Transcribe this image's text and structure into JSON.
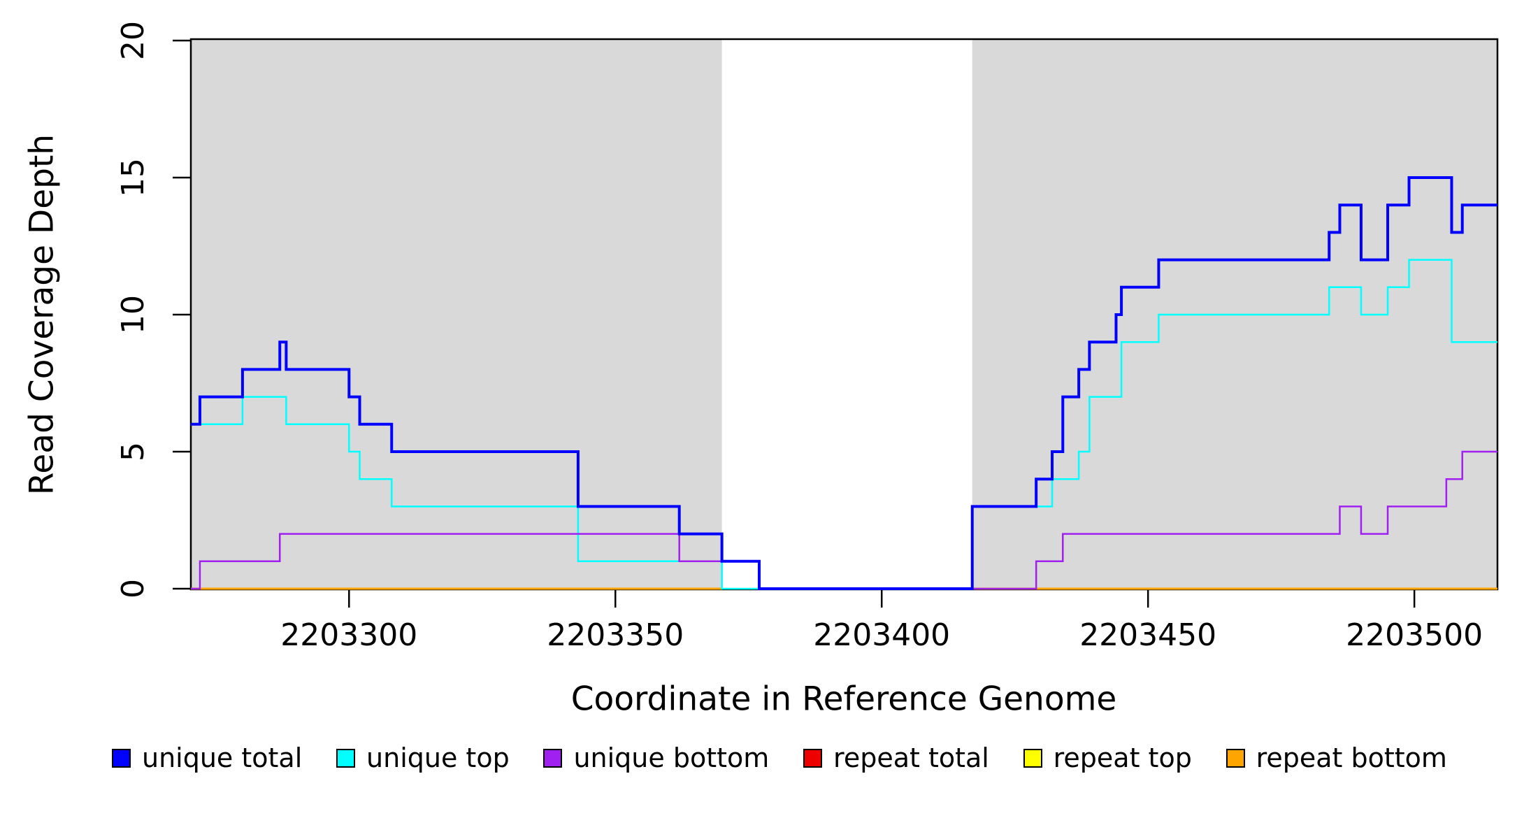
{
  "chart_data": {
    "type": "line",
    "subtype": "step-after-coverage-plot",
    "title": "",
    "xlabel": "Coordinate in Reference Genome",
    "ylabel": "Read Coverage Depth",
    "x_range": [
      2203270.3,
      2203515.6
    ],
    "y_range": [
      0,
      20.1
    ],
    "x_ticks": [
      2203300,
      2203350,
      2203400,
      2203450,
      2203500
    ],
    "y_ticks": [
      0,
      5,
      10,
      15,
      20
    ],
    "grid": false,
    "legend_position": "bottom",
    "highlight_regions": {
      "color": "#d9d9d9",
      "ranges": [
        [
          2203270.3,
          2203370
        ],
        [
          2203417,
          2203515.6
        ]
      ]
    },
    "series": [
      {
        "name": "repeat total",
        "color": "#ee0000",
        "width": 3,
        "segments": [
          [
            2203270.3,
            2203370
          ],
          [
            2203417,
            2203515.6
          ]
        ],
        "flat_value": 0
      },
      {
        "name": "repeat top",
        "color": "#ffff00",
        "width": 3,
        "segments": [
          [
            2203270.3,
            2203370
          ],
          [
            2203417,
            2203515.6
          ]
        ],
        "flat_value": 0
      },
      {
        "name": "repeat bottom",
        "color": "#ffa500",
        "width": 3,
        "segments": [
          [
            2203270.3,
            2203370
          ],
          [
            2203417,
            2203515.6
          ]
        ],
        "flat_value": 0
      },
      {
        "name": "unique top",
        "color": "#00ffff",
        "width": 2.5,
        "points": [
          [
            2203270.3,
            6
          ],
          [
            2203280,
            7
          ],
          [
            2203288.2,
            6
          ],
          [
            2203300,
            5
          ],
          [
            2203302,
            4
          ],
          [
            2203308,
            3
          ],
          [
            2203343,
            1
          ],
          [
            2203370,
            0
          ],
          [
            2203417,
            3
          ],
          [
            2203432,
            4
          ],
          [
            2203437,
            5
          ],
          [
            2203439,
            7
          ],
          [
            2203445,
            9
          ],
          [
            2203452,
            10
          ],
          [
            2203484,
            11
          ],
          [
            2203490,
            10
          ],
          [
            2203495,
            11
          ],
          [
            2203499,
            12
          ],
          [
            2203507,
            9
          ]
        ],
        "x_end": 2203515.6
      },
      {
        "name": "unique bottom",
        "color": "#a020f0",
        "width": 2.5,
        "points": [
          [
            2203270.3,
            0
          ],
          [
            2203272,
            1
          ],
          [
            2203287,
            2
          ],
          [
            2203362,
            1
          ],
          [
            2203377,
            0
          ],
          [
            2203429,
            1
          ],
          [
            2203434,
            2
          ],
          [
            2203486,
            3
          ],
          [
            2203490,
            2
          ],
          [
            2203495,
            3
          ],
          [
            2203506,
            4
          ],
          [
            2203509,
            5
          ]
        ],
        "x_end": 2203515.6
      },
      {
        "name": "unique total",
        "color": "#0000ff",
        "width": 4,
        "points": [
          [
            2203270.3,
            6
          ],
          [
            2203272,
            7
          ],
          [
            2203280,
            8
          ],
          [
            2203287,
            9
          ],
          [
            2203288.2,
            8
          ],
          [
            2203300,
            7
          ],
          [
            2203302,
            6
          ],
          [
            2203308,
            5
          ],
          [
            2203343,
            3
          ],
          [
            2203362,
            2
          ],
          [
            2203370,
            1
          ],
          [
            2203377,
            0
          ],
          [
            2203417,
            3
          ],
          [
            2203429,
            4
          ],
          [
            2203432,
            5
          ],
          [
            2203434,
            7
          ],
          [
            2203437,
            8
          ],
          [
            2203439,
            9
          ],
          [
            2203444,
            10
          ],
          [
            2203445,
            11
          ],
          [
            2203452,
            12
          ],
          [
            2203484,
            13
          ],
          [
            2203486,
            14
          ],
          [
            2203490,
            12
          ],
          [
            2203495,
            14
          ],
          [
            2203499,
            15
          ],
          [
            2203507,
            13
          ],
          [
            2203509,
            14
          ]
        ],
        "x_end": 2203515.6
      }
    ]
  },
  "axis": {
    "x_title": "Coordinate in Reference Genome",
    "y_title": "Read Coverage Depth"
  },
  "legend": {
    "items": [
      {
        "label": "unique total",
        "color": "#0000ff"
      },
      {
        "label": "unique top",
        "color": "#00ffff"
      },
      {
        "label": "unique bottom",
        "color": "#a020f0"
      },
      {
        "label": "repeat total",
        "color": "#ee0000"
      },
      {
        "label": "repeat top",
        "color": "#ffff00"
      },
      {
        "label": "repeat bottom",
        "color": "#ffa500"
      }
    ]
  }
}
